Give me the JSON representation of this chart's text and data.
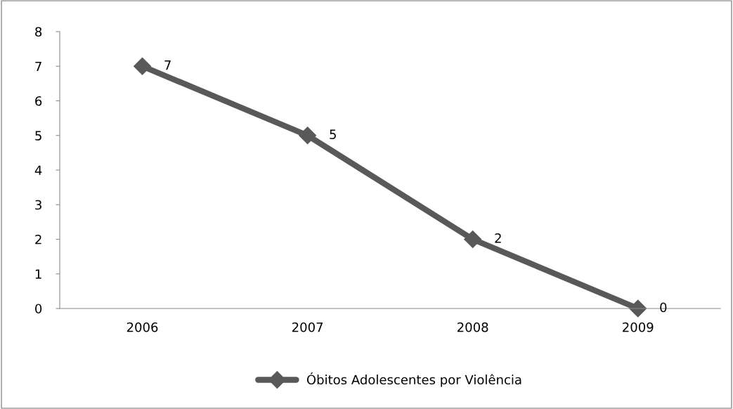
{
  "chart_data": {
    "type": "line",
    "categories": [
      "2006",
      "2007",
      "2008",
      "2009"
    ],
    "series": [
      {
        "name": "Óbitos Adolescentes por Violência",
        "color": "#595959",
        "values": [
          7,
          5,
          2,
          0
        ]
      }
    ],
    "ylim": [
      0,
      8
    ],
    "yticks": [
      0,
      1,
      2,
      3,
      4,
      5,
      6,
      7,
      8
    ],
    "grid": false,
    "legend": "bottom",
    "marker": "diamond",
    "line_style": "solid",
    "data_labels": true
  }
}
